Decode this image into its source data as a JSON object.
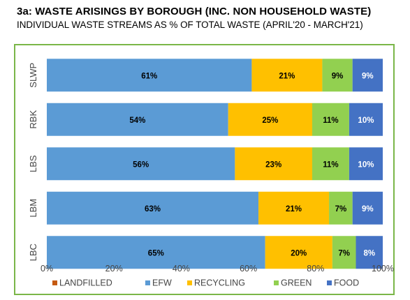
{
  "header": {
    "title": "3a: WASTE ARISINGS BY BOROUGH (INC. NON HOUSEHOLD WASTE)",
    "subtitle": "INDIVIDUAL WASTE STREAMS AS % OF TOTAL WASTE (APRIL'20 - MARCH'21)"
  },
  "chart_data": {
    "type": "bar",
    "orientation": "horizontal",
    "stacked": true,
    "title": "3a: WASTE ARISINGS BY BOROUGH (INC. NON HOUSEHOLD WASTE)",
    "subtitle": "INDIVIDUAL WASTE STREAMS AS % OF TOTAL WASTE (APRIL'20 - MARCH'21)",
    "categories": [
      "SLWP",
      "RBK",
      "LBS",
      "LBM",
      "LBC"
    ],
    "series": [
      {
        "name": "LANDFILLED",
        "color": "#c55a11",
        "values": [
          0,
          0,
          0,
          0,
          0
        ],
        "labels": [
          "",
          "",
          "",
          "",
          ""
        ]
      },
      {
        "name": "EFW",
        "color": "#5b9bd5",
        "values": [
          61,
          54,
          56,
          63,
          65
        ],
        "labels": [
          "61%",
          "54%",
          "56%",
          "63%",
          "65%"
        ]
      },
      {
        "name": "RECYCLING",
        "color": "#ffc000",
        "values": [
          21,
          25,
          23,
          21,
          20
        ],
        "labels": [
          "21%",
          "25%",
          "23%",
          "21%",
          "20%"
        ]
      },
      {
        "name": "GREEN",
        "color": "#92d050",
        "values": [
          9,
          11,
          11,
          7,
          7
        ],
        "labels": [
          "9%",
          "11%",
          "11%",
          "7%",
          "7%"
        ]
      },
      {
        "name": "FOOD",
        "color": "#4472c4",
        "values": [
          9,
          10,
          10,
          9,
          8
        ],
        "labels": [
          "9%",
          "10%",
          "10%",
          "9%",
          "8%"
        ]
      }
    ],
    "label_colors": {
      "EFW": "#000000",
      "RECYCLING": "#000000",
      "GREEN": "#000000",
      "FOOD": "#ffffff"
    },
    "xlim": [
      0,
      100
    ],
    "xticks": [
      0,
      20,
      40,
      60,
      80,
      100
    ],
    "xtick_labels": [
      "0%",
      "20%",
      "40%",
      "60%",
      "80%",
      "100%"
    ],
    "grid": false,
    "legend": "bottom"
  }
}
